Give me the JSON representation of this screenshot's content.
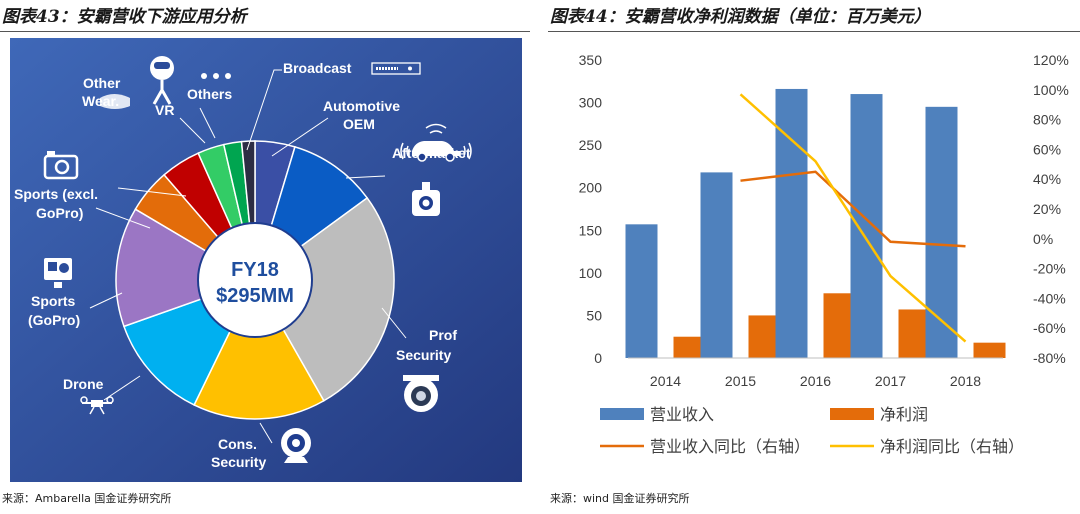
{
  "left": {
    "figure_title": "图表43：安霸营收下游应用分析",
    "source": "来源：Ambarella 国金证券研究所"
  },
  "right": {
    "figure_title": "图表44：安霸营收净利润数据（单位：百万美元）",
    "source": "来源：wind 国金证券研究所"
  },
  "chart_data": [
    {
      "type": "pie",
      "center_label_line1": "FY18",
      "center_label_line2": "$295MM",
      "background": "#2b4c9a",
      "slices": [
        {
          "label": "Broadcast",
          "value": 4.5,
          "color": "#3a4fa5"
        },
        {
          "label": "Automotive OEM / Aftermarket",
          "value": 10,
          "color": "#0a5cc5"
        },
        {
          "label": "Prof Security",
          "value": 26,
          "color": "#bdbdbd"
        },
        {
          "label": "Cons. Security",
          "value": 15,
          "color": "#ffc000"
        },
        {
          "label": "Drone",
          "value": 12,
          "color": "#00b0f0"
        },
        {
          "label": "Sports (GoPro)",
          "value": 13.5,
          "color": "#9b76c4"
        },
        {
          "label": "Sports (excl. GoPro)",
          "value": 5,
          "color": "#e36c0a"
        },
        {
          "label": "Other Wear.",
          "value": 4.5,
          "color": "#c00000"
        },
        {
          "label": "VR",
          "value": 3,
          "color": "#33cc66"
        },
        {
          "label": "Others",
          "value": 2,
          "color": "#00a550"
        },
        {
          "label": "",
          "value": 1.5,
          "color": "#2d2d44"
        }
      ],
      "annotations": [
        "Broadcast",
        "Automotive",
        "OEM",
        "Aftermarket",
        "Prof",
        "Security",
        "Cons.",
        "Security",
        "Drone",
        "Sports",
        "(GoPro)",
        "Sports (excl.",
        "GoPro)",
        "Other",
        "Wear.",
        "VR",
        "Others"
      ]
    },
    {
      "type": "bar",
      "categories": [
        "2014",
        "2015",
        "2016",
        "2017",
        "2018"
      ],
      "series": [
        {
          "name": "营业收入",
          "axis": "left",
          "type": "bar",
          "color": "#4f81bd",
          "values": [
            157,
            218,
            316,
            310,
            295
          ]
        },
        {
          "name": "净利润",
          "axis": "left",
          "type": "bar",
          "color": "#e46c0a",
          "values": [
            25,
            50,
            76,
            57,
            18
          ]
        },
        {
          "name": "营业收入同比（右轴）",
          "axis": "right",
          "type": "line",
          "color": "#e46c0a",
          "values": [
            null,
            39,
            45,
            -2,
            -5
          ]
        },
        {
          "name": "净利润同比（右轴）",
          "axis": "right",
          "type": "line",
          "color": "#ffc000",
          "values": [
            null,
            97,
            52,
            -25,
            -69
          ]
        }
      ],
      "ylim_left": [
        0,
        350
      ],
      "yticks_left": [
        "0",
        "50",
        "100",
        "150",
        "200",
        "250",
        "300",
        "350"
      ],
      "ylim_right": [
        -80,
        120
      ],
      "yticks_right": [
        "-80%",
        "-60%",
        "-40%",
        "-20%",
        "0%",
        "20%",
        "40%",
        "60%",
        "80%",
        "100%",
        "120%"
      ],
      "legend_position": "bottom",
      "grid": false
    }
  ]
}
